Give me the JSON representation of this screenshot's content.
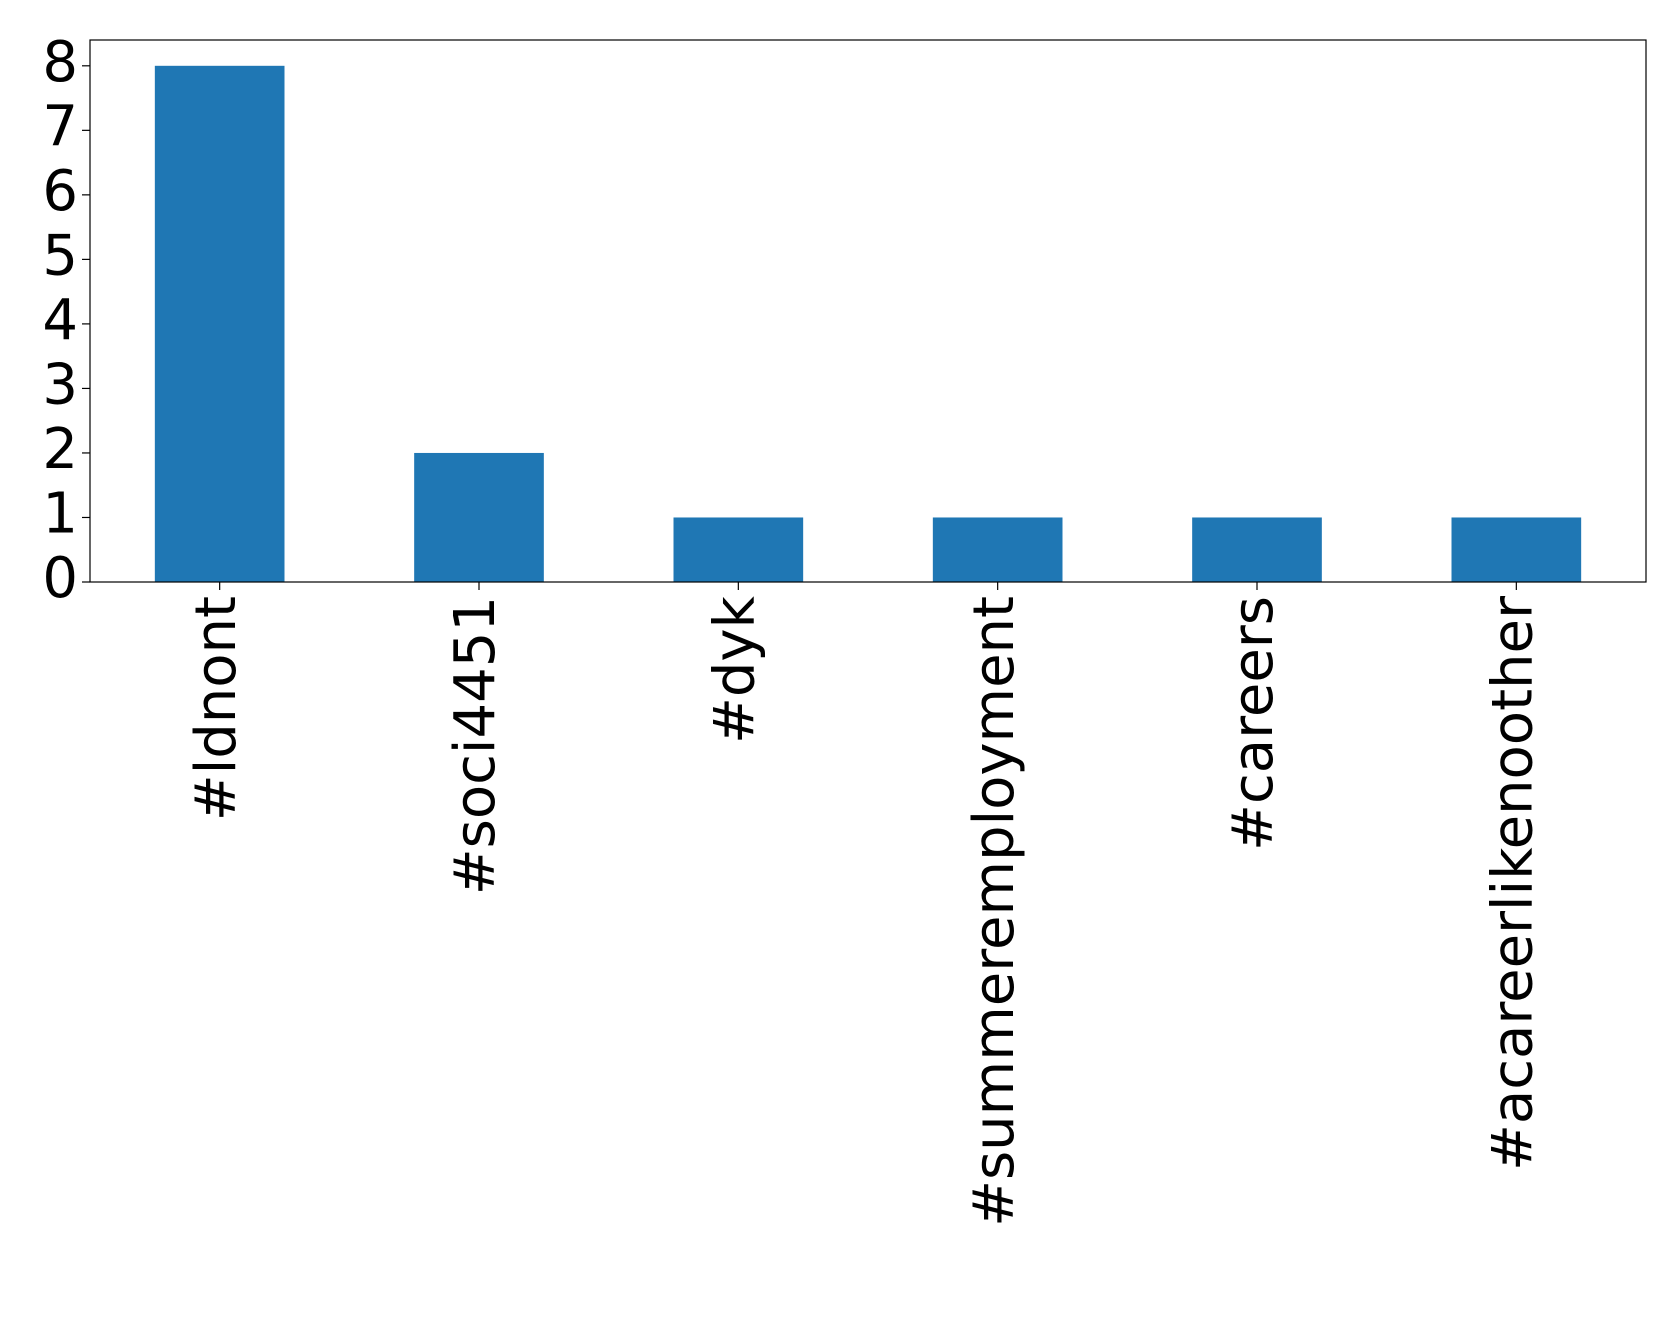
{
  "chart_data": {
    "type": "bar",
    "categories": [
      "#ldnont",
      "#soci4451",
      "#dyk",
      "#summeremployment",
      "#careers",
      "#acareerlikenoother"
    ],
    "values": [
      8,
      2,
      1,
      1,
      1,
      1
    ],
    "color": "#1f77b4",
    "ylim": [
      0,
      8.4
    ],
    "yticks": [
      0,
      1,
      2,
      3,
      4,
      5,
      6,
      7,
      8
    ]
  }
}
